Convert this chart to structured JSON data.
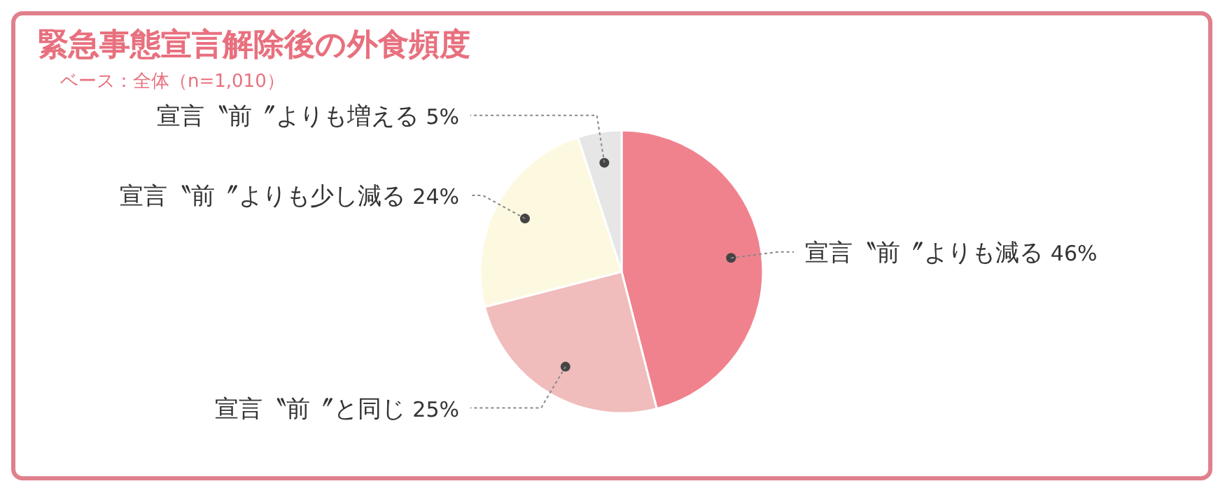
{
  "chart_data": {
    "type": "pie",
    "title": "緊急事態宣言解除後の外食頻度",
    "subtitle": "ベース：全体（n=1,010）",
    "categories": [
      "宣言〝前〞よりも減る",
      "宣言〝前〞と同じ",
      "宣言〝前〞よりも少し減る",
      "宣言〝前〞よりも増える"
    ],
    "values": [
      46,
      25,
      24,
      5
    ],
    "colors": [
      "#f0828e",
      "#f0bcbc",
      "#fdf9e0",
      "#e6e6e6"
    ],
    "value_labels": [
      "46%",
      "25%",
      "24%",
      "5%"
    ],
    "legend": false
  }
}
